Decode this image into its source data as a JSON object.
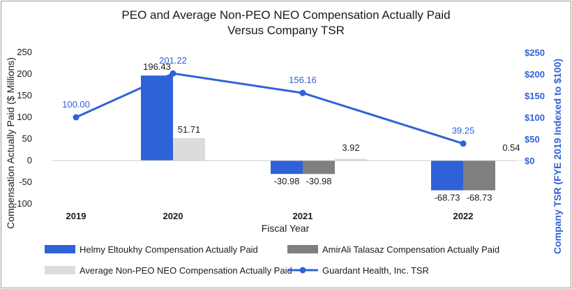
{
  "chart_data": {
    "type": "bar+line",
    "title": "PEO and Average Non-PEO NEO Compensation Actually Paid",
    "subtitle": "Versus Company TSR",
    "xlabel": "Fiscal Year",
    "ylabel": "Compensation Actually Paid ($ Millions)",
    "y2label": "Company TSR (FYE 2019 Indexed to $100)",
    "categories": [
      "2019",
      "2020",
      "2021",
      "2022"
    ],
    "ylim": [
      -100,
      250
    ],
    "yticks": [
      250,
      200,
      150,
      100,
      50,
      0,
      -50,
      -100
    ],
    "yticks_labels": [
      "250",
      "200",
      "150",
      "100",
      "50",
      "0",
      "-50",
      "-100"
    ],
    "y2lim": [
      -100,
      250
    ],
    "y2ticks": [
      250,
      200,
      150,
      100,
      50,
      0
    ],
    "y2ticks_labels": [
      "$250",
      "$200",
      "$150",
      "$100",
      "$50",
      "$0"
    ],
    "grid": false,
    "legend_position": "bottom",
    "series": [
      {
        "name": "Helmy Eltoukhy Compensation Actually Paid",
        "type": "bar",
        "color": "#2f62d8",
        "values": [
          null,
          196.43,
          -30.98,
          -68.73
        ],
        "labels": [
          "",
          "196.43",
          "-30.98",
          "-68.73"
        ]
      },
      {
        "name": "AmirAli Talasaz Compensation Actually Paid",
        "type": "bar",
        "color": "#7f7f7f",
        "values": [
          null,
          null,
          -30.98,
          -68.73
        ],
        "labels": [
          "",
          "",
          "-30.98",
          "-68.73"
        ]
      },
      {
        "name": "Average Non-PEO NEO Compensation Actually Paid",
        "type": "bar",
        "color": "#dcdcdc",
        "values": [
          null,
          51.71,
          3.92,
          0.54
        ],
        "labels": [
          "",
          "51.71",
          "3.92",
          "0.54"
        ]
      },
      {
        "name": "Guardant Health, Inc. TSR",
        "type": "line",
        "color": "#2f62d8",
        "axis": "right",
        "values": [
          100.0,
          201.22,
          156.16,
          39.25
        ],
        "labels": [
          "100.00",
          "201.22",
          "156.16",
          "39.25"
        ]
      }
    ]
  }
}
